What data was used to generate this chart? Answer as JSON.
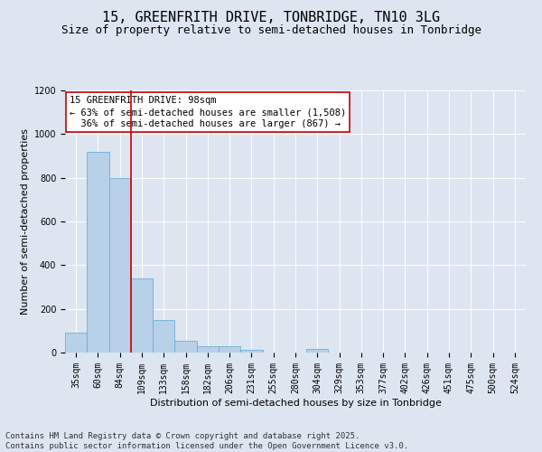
{
  "title": "15, GREENFRITH DRIVE, TONBRIDGE, TN10 3LG",
  "subtitle": "Size of property relative to semi-detached houses in Tonbridge",
  "xlabel": "Distribution of semi-detached houses by size in Tonbridge",
  "ylabel": "Number of semi-detached properties",
  "categories": [
    "35sqm",
    "60sqm",
    "84sqm",
    "109sqm",
    "133sqm",
    "158sqm",
    "182sqm",
    "206sqm",
    "231sqm",
    "255sqm",
    "280sqm",
    "304sqm",
    "329sqm",
    "353sqm",
    "377sqm",
    "402sqm",
    "426sqm",
    "451sqm",
    "475sqm",
    "500sqm",
    "524sqm"
  ],
  "values": [
    90,
    920,
    800,
    340,
    150,
    55,
    30,
    28,
    12,
    0,
    0,
    15,
    0,
    0,
    0,
    0,
    0,
    0,
    0,
    0,
    0
  ],
  "bar_color": "#b8d0e8",
  "bar_edge_color": "#6baed6",
  "vline_x": 3.0,
  "vline_color": "#cc0000",
  "annotation_line1": "15 GREENFRITH DRIVE: 98sqm",
  "annotation_line2": "← 63% of semi-detached houses are smaller (1,508)",
  "annotation_line3": "  36% of semi-detached houses are larger (867) →",
  "ylim": [
    0,
    1200
  ],
  "yticks": [
    0,
    200,
    400,
    600,
    800,
    1000,
    1200
  ],
  "background_color": "#dde5f0",
  "plot_bg_color": "#dde5f0",
  "grid_color": "#ffffff",
  "footer_text": "Contains HM Land Registry data © Crown copyright and database right 2025.\nContains public sector information licensed under the Open Government Licence v3.0.",
  "title_fontsize": 11,
  "subtitle_fontsize": 9,
  "xlabel_fontsize": 8,
  "ylabel_fontsize": 8,
  "tick_fontsize": 7,
  "annotation_fontsize": 7.5,
  "footer_fontsize": 6.5
}
